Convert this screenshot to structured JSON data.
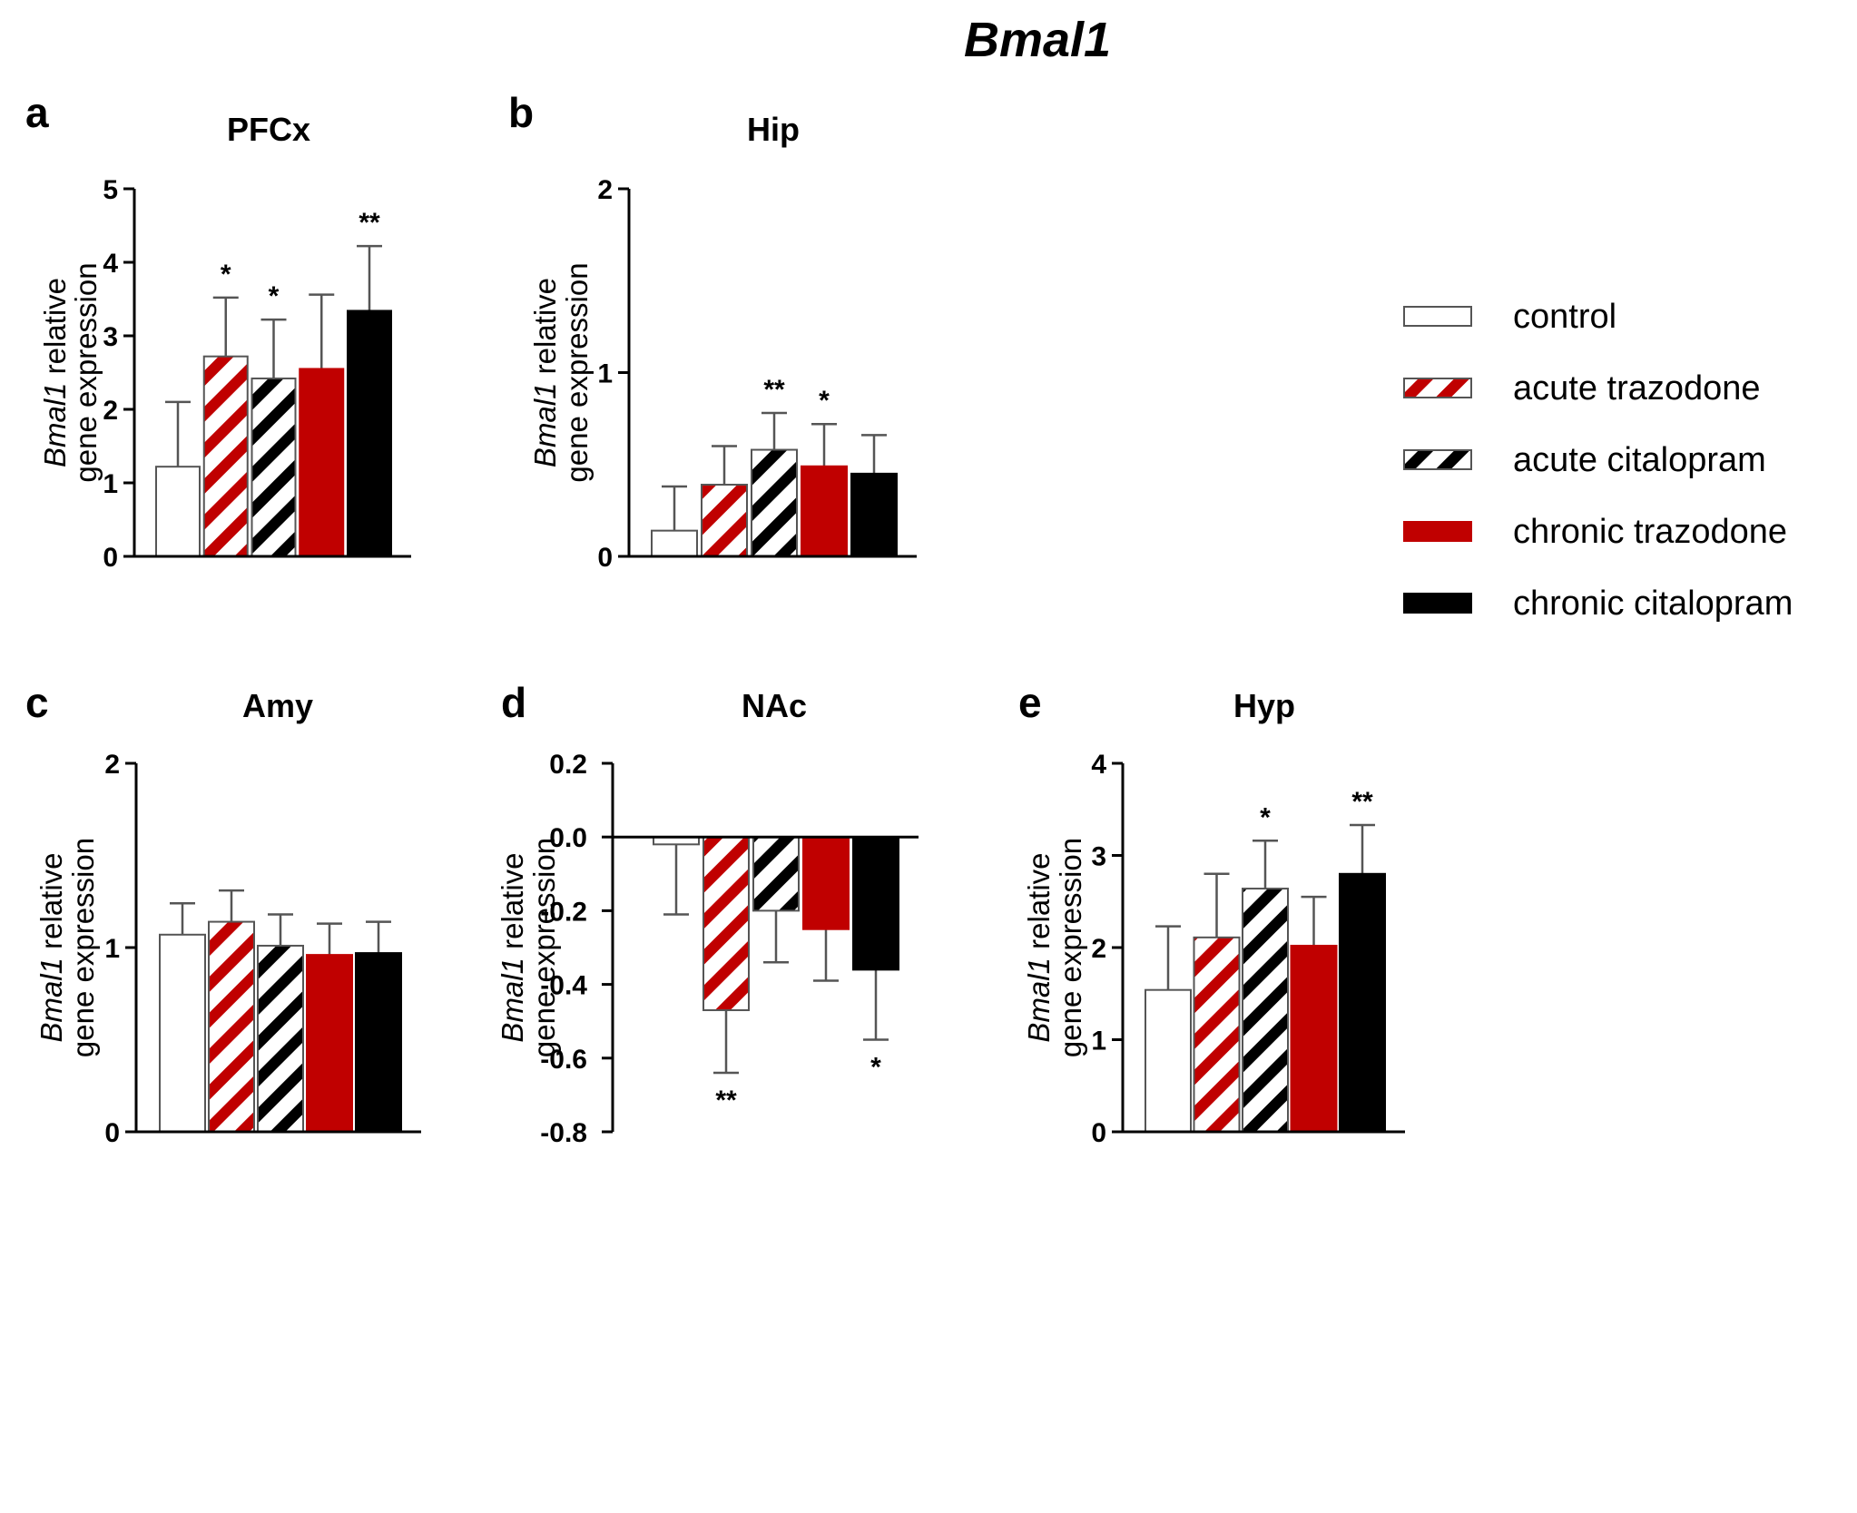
{
  "figure": {
    "title": "Bmal1"
  },
  "legend": [
    {
      "label": "control",
      "style": "open"
    },
    {
      "label": "acute trazodone",
      "style": "hatch-red"
    },
    {
      "label": "acute citalopram",
      "style": "hatch-black"
    },
    {
      "label": "chronic trazodone",
      "style": "solid-red"
    },
    {
      "label": "chronic citalopram",
      "style": "solid-black"
    }
  ],
  "colors": {
    "red": "#c00000",
    "black": "#000000",
    "white": "#ffffff"
  },
  "chart_data": [
    {
      "type": "bar",
      "panel": "a",
      "title": "PFCx",
      "ylabel_italic": "Bmal1",
      "ylabel_rest": " relative",
      "ylabel_line2": "gene expression",
      "categories": [
        "control",
        "acute trazodone",
        "acute citalopram",
        "chronic trazodone",
        "chronic citalopram"
      ],
      "values": [
        1.22,
        2.72,
        2.42,
        2.55,
        3.34
      ],
      "errors": [
        0.88,
        0.8,
        0.8,
        1.01,
        0.88
      ],
      "error_dir": "up",
      "significance": [
        "",
        "*",
        "*",
        "",
        "**"
      ],
      "ylim": [
        0,
        5
      ],
      "ticks": [
        0,
        1,
        2,
        3,
        4,
        5
      ],
      "tick_labels": [
        "0",
        "1",
        "2",
        "3",
        "4",
        "5"
      ]
    },
    {
      "type": "bar",
      "panel": "b",
      "title": "Hip",
      "ylabel_italic": "Bmal1",
      "ylabel_rest": " relative",
      "ylabel_line2": "gene expression",
      "categories": [
        "control",
        "acute trazodone",
        "acute citalopram",
        "chronic trazodone",
        "chronic citalopram"
      ],
      "values": [
        0.14,
        0.39,
        0.58,
        0.49,
        0.45
      ],
      "errors": [
        0.24,
        0.21,
        0.2,
        0.23,
        0.21
      ],
      "error_dir": "up",
      "significance": [
        "",
        "",
        "**",
        "*",
        ""
      ],
      "ylim": [
        0,
        2
      ],
      "ticks": [
        0,
        1,
        2
      ],
      "tick_labels": [
        "0",
        "1",
        "2"
      ]
    },
    {
      "type": "bar",
      "panel": "c",
      "title": "Amy",
      "ylabel_italic": "Bmal1",
      "ylabel_rest": " relative",
      "ylabel_line2": "gene expression",
      "categories": [
        "control",
        "acute trazodone",
        "acute citalopram",
        "chronic trazodone",
        "chronic citalopram"
      ],
      "values": [
        1.07,
        1.14,
        1.01,
        0.96,
        0.97
      ],
      "errors": [
        0.17,
        0.17,
        0.17,
        0.17,
        0.17
      ],
      "error_dir": "up",
      "significance": [
        "",
        "",
        "",
        "",
        ""
      ],
      "ylim": [
        0,
        2
      ],
      "ticks": [
        0,
        1,
        2
      ],
      "tick_labels": [
        "0",
        "1",
        "2"
      ]
    },
    {
      "type": "bar",
      "panel": "d",
      "title": "NAc",
      "ylabel_italic": "Bmal1",
      "ylabel_rest": " relative",
      "ylabel_line2": "gene expression",
      "categories": [
        "control",
        "acute trazodone",
        "acute citalopram",
        "chronic trazodone",
        "chronic citalopram"
      ],
      "values": [
        -0.02,
        -0.47,
        -0.2,
        -0.25,
        -0.36
      ],
      "errors": [
        0.19,
        0.17,
        0.14,
        0.14,
        0.19
      ],
      "error_dir": "down",
      "significance": [
        "",
        "**",
        "",
        "",
        "*"
      ],
      "ylim": [
        -0.8,
        0.2
      ],
      "ticks": [
        -0.8,
        -0.6,
        -0.4,
        -0.2,
        0.0,
        0.2
      ],
      "tick_labels": [
        "-0.8",
        "-0.6",
        "-0.4",
        "-0.2",
        "0.0",
        "0.2"
      ]
    },
    {
      "type": "bar",
      "panel": "e",
      "title": "Hyp",
      "ylabel_italic": "Bmal1",
      "ylabel_rest": " relative",
      "ylabel_line2": "gene expression",
      "categories": [
        "control",
        "acute trazodone",
        "acute citalopram",
        "chronic trazodone",
        "chronic citalopram"
      ],
      "values": [
        1.54,
        2.11,
        2.64,
        2.02,
        2.8
      ],
      "errors": [
        0.69,
        0.69,
        0.52,
        0.53,
        0.53
      ],
      "error_dir": "up",
      "significance": [
        "",
        "",
        "*",
        "",
        "**"
      ],
      "ylim": [
        0,
        4
      ],
      "ticks": [
        0,
        1,
        2,
        3,
        4
      ],
      "tick_labels": [
        "0",
        "1",
        "2",
        "3",
        "4"
      ]
    }
  ]
}
